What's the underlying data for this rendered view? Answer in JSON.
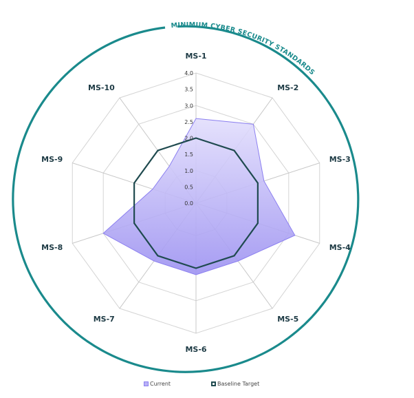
{
  "chart_data": {
    "type": "radar",
    "title": "MINIMUM CYBER SECURITY STANDARDS",
    "categories": [
      "MS-1",
      "MS-2",
      "MS-3",
      "MS-4",
      "MS-5",
      "MS-6",
      "MS-7",
      "MS-8",
      "MS-9",
      "MS-10"
    ],
    "series": [
      {
        "name": "Current",
        "values": [
          2.6,
          3.0,
          2.2,
          3.2,
          2.2,
          2.2,
          2.2,
          3.0,
          1.4,
          1.4
        ],
        "color": "#8b7ff0",
        "fill": "#b9b1f7"
      },
      {
        "name": "Baseline Target",
        "values": [
          2.0,
          2.0,
          2.0,
          2.0,
          2.0,
          2.0,
          2.0,
          2.0,
          2.0,
          2.0
        ],
        "color": "#1f4a4f"
      }
    ],
    "rlim": [
      0,
      4.0
    ],
    "ticks": [
      "0.0",
      "0.5",
      "1.0",
      "1.5",
      "2.0",
      "2.5",
      "3.0",
      "3.5",
      "4.0"
    ],
    "gridlines": [
      1,
      2,
      3,
      4
    ],
    "legend_position": "bottom",
    "frame_color": "#1a8a8c"
  },
  "legend": [
    {
      "label": "Current"
    },
    {
      "label": "Baseline Target"
    }
  ]
}
